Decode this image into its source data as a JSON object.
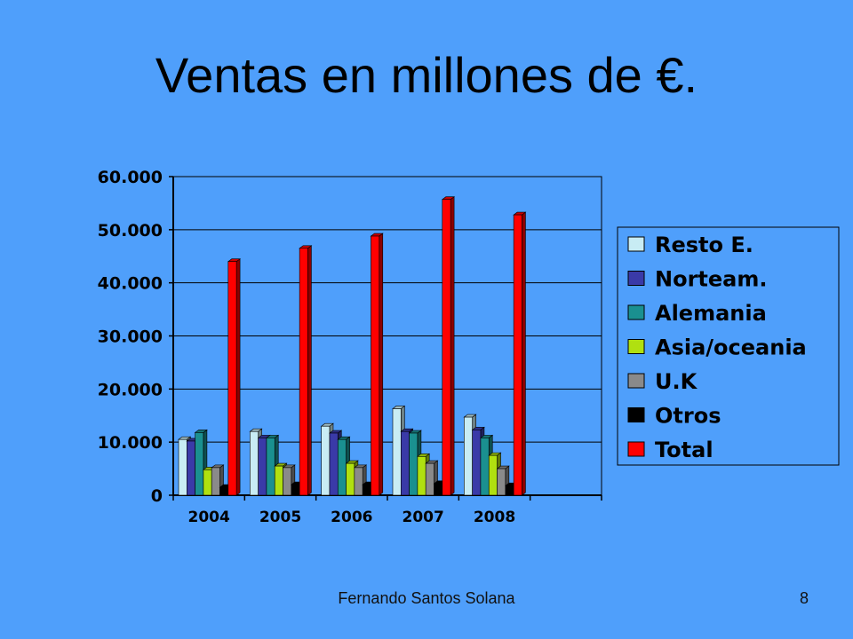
{
  "slide": {
    "title": "Ventas en millones de €.",
    "footer_author": "Fernando Santos Solana",
    "slide_number": "8"
  },
  "colors": {
    "background": "#4f9ffb",
    "Resto E.": "#c8ecf4",
    "Norteam.": "#3a3aa8",
    "Alemania": "#1a9090",
    "Asia/oceania": "#b0e010",
    "U.K": "#8a8a8a",
    "Otros": "#000000",
    "Total": "#ff0000"
  },
  "chart_data": {
    "type": "bar",
    "title": "",
    "xlabel": "",
    "ylabel": "",
    "ylim": [
      0,
      60000
    ],
    "y_ticks": [
      {
        "value": 0,
        "label": "0"
      },
      {
        "value": 10000,
        "label": "10.000"
      },
      {
        "value": 20000,
        "label": "20.000"
      },
      {
        "value": 30000,
        "label": "30.000"
      },
      {
        "value": 40000,
        "label": "40.000"
      },
      {
        "value": 50000,
        "label": "50.000"
      },
      {
        "value": 60000,
        "label": "60.000"
      }
    ],
    "categories": [
      "2004",
      "2005",
      "2006",
      "2007",
      "2008",
      ""
    ],
    "grid": true,
    "legend_position": "right",
    "series": [
      {
        "name": "Resto E.",
        "values": [
          10500,
          12000,
          13000,
          16300,
          14700,
          null
        ]
      },
      {
        "name": "Norteam.",
        "values": [
          10200,
          10800,
          11700,
          12000,
          12300,
          null
        ]
      },
      {
        "name": "Alemania",
        "values": [
          11800,
          10800,
          10500,
          11700,
          10800,
          null
        ]
      },
      {
        "name": "Asia/oceania",
        "values": [
          4800,
          5500,
          6000,
          7300,
          7500,
          null
        ]
      },
      {
        "name": "U.K",
        "values": [
          5200,
          5200,
          5200,
          6000,
          5000,
          null
        ]
      },
      {
        "name": "Otros",
        "values": [
          1500,
          2000,
          2000,
          2200,
          1800,
          null
        ]
      },
      {
        "name": "Total",
        "values": [
          44000,
          46500,
          48800,
          55700,
          52800,
          null
        ]
      }
    ]
  }
}
